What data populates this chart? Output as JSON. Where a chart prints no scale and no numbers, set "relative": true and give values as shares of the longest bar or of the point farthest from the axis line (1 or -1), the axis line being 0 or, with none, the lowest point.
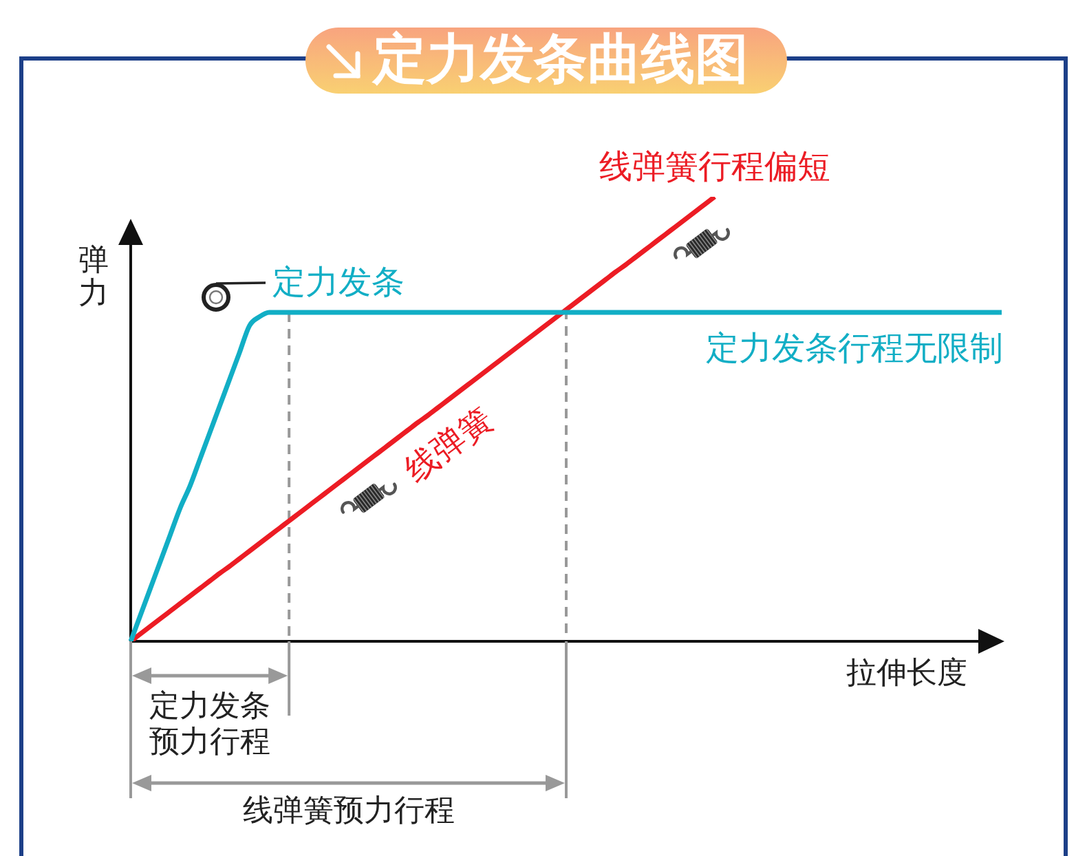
{
  "chart_data": {
    "type": "line",
    "title": "定力发条曲线图",
    "xlabel": "拉伸长度",
    "ylabel": "弹力",
    "relative": true,
    "categories": [
      null,
      null,
      null,
      null,
      null,
      null,
      null,
      null,
      null,
      null,
      null,
      null,
      null,
      null,
      null,
      null,
      null,
      null,
      null,
      null,
      null,
      null,
      null,
      null,
      null,
      null,
      null,
      null,
      null,
      null,
      null,
      null,
      null,
      null,
      null,
      null,
      null,
      null,
      null,
      null,
      null,
      null,
      null,
      null,
      null,
      null,
      null,
      null,
      null,
      null,
      null,
      null,
      null,
      null,
      null,
      null,
      null,
      null,
      null,
      null,
      null,
      null,
      null,
      null,
      null,
      null,
      null,
      null,
      null,
      null,
      null,
      null,
      null,
      null,
      null,
      null,
      null,
      null,
      null,
      null,
      null,
      null,
      null,
      null,
      null,
      null,
      null,
      null,
      null
    ],
    "series": [
      {
        "name": "定力发条",
        "color": "#12aec5",
        "values": [
          0,
          0.06,
          0.12,
          0.18,
          0.24,
          0.3,
          0.35,
          0.41,
          0.47,
          0.53,
          0.59,
          0.65,
          0.71,
          0.73,
          0.74,
          0.74,
          0.74,
          0.74,
          0.74,
          0.74,
          0.74,
          0.74,
          0.74,
          0.74,
          0.74,
          0.74,
          0.74,
          0.74,
          0.74,
          0.74,
          0.74,
          0.74,
          0.74,
          0.74,
          0.74,
          0.74,
          0.74,
          0.74,
          0.74,
          0.74,
          0.74,
          0.74,
          0.74,
          0.74,
          0.74,
          0.74,
          0.74,
          0.74,
          0.74,
          0.74,
          0.74,
          0.74,
          0.74,
          0.74,
          0.74,
          0.74,
          0.74,
          0.74,
          0.74,
          0.74,
          0.74,
          0.74,
          0.74,
          0.74,
          0.74,
          0.74,
          0.74,
          0.74,
          0.74,
          0.74,
          0.74,
          0.74,
          0.74,
          0.74,
          0.74,
          0.74,
          0.74,
          0.74,
          0.74,
          0.74,
          0.74,
          0.74,
          0.74,
          0.74,
          0.74,
          0.74,
          0.74,
          0.74,
          0.74
        ]
      },
      {
        "name": "线弹簧",
        "color": "#ec1c24",
        "values": [
          0,
          0.017,
          0.034,
          0.051,
          0.068,
          0.085,
          0.102,
          0.119,
          0.136,
          0.153,
          0.169,
          0.186,
          0.203,
          0.22,
          0.237,
          0.254,
          0.271,
          0.288,
          0.305,
          0.322,
          0.339,
          0.356,
          0.373,
          0.39,
          0.407,
          0.424,
          0.441,
          0.458,
          0.475,
          0.492,
          0.508,
          0.525,
          0.542,
          0.559,
          0.576,
          0.593,
          0.61,
          0.627,
          0.644,
          0.661,
          0.678,
          0.695,
          0.712,
          0.729,
          0.746,
          0.763,
          0.78,
          0.797,
          0.814,
          0.831,
          0.847,
          0.864,
          0.881,
          0.898,
          0.915,
          0.932,
          0.949,
          0.966,
          0.983,
          1,
          null,
          null,
          null,
          null,
          null,
          null,
          null,
          null,
          null,
          null,
          null,
          null,
          null,
          null,
          null,
          null,
          null,
          null,
          null,
          null,
          null,
          null,
          null,
          null,
          null,
          null,
          null,
          null,
          null
        ]
      }
    ],
    "annotations": [
      {
        "text": "线弹簧行程偏短",
        "y": 1
      },
      {
        "text": "定力发条行程无限制",
        "y": 0.74
      },
      "定力发条预力行程",
      "线弹簧预力行程"
    ],
    "legend": false,
    "grid": false,
    "marker": "none",
    "line_style": "solid",
    "tick_labels": false
  }
}
